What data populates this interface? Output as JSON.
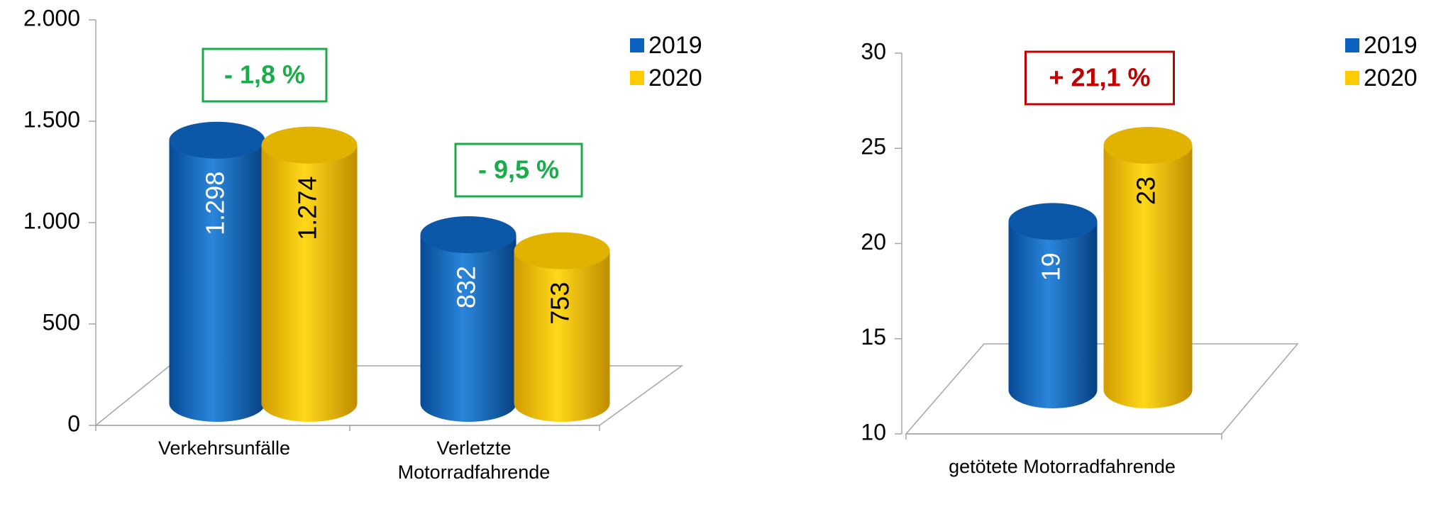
{
  "chart_data": [
    {
      "type": "bar",
      "categories": [
        "Verkehrsunfälle",
        "Verletzte Motorradfahrende"
      ],
      "series": [
        {
          "name": "2019",
          "color": "#0c62c0",
          "values": [
            1298,
            832
          ],
          "value_labels": [
            "1.298",
            "832"
          ]
        },
        {
          "name": "2020",
          "color": "#ffcc00",
          "values": [
            1274,
            753
          ],
          "value_labels": [
            "1.274",
            "753"
          ]
        }
      ],
      "annotations": [
        "- 1,8 %",
        "- 9,5 %"
      ],
      "ylim": [
        0,
        2000
      ],
      "yticks": [
        0,
        500,
        {
          "value": 1000,
          "label": "1.000"
        },
        {
          "value": 1500,
          "label": "1.500"
        },
        {
          "value": 2000,
          "label": "2.000"
        }
      ],
      "legend": "upper right"
    },
    {
      "type": "bar",
      "categories": [
        "getötete Motorradfahrende"
      ],
      "series": [
        {
          "name": "2019",
          "color": "#0c62c0",
          "values": [
            19
          ]
        },
        {
          "name": "2020",
          "color": "#ffcc00",
          "values": [
            23
          ]
        }
      ],
      "annotations": [
        "+ 21,1 %"
      ],
      "ylim": [
        10,
        30
      ],
      "yticks": [
        10,
        15,
        20,
        25,
        30
      ],
      "legend": "upper right"
    }
  ]
}
